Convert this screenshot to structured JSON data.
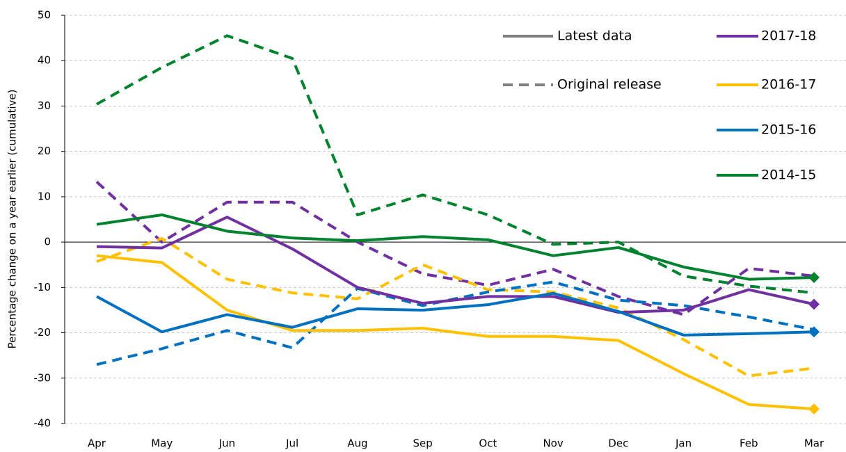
{
  "chart_data": {
    "type": "line",
    "y_label": "Percentage change on a year earlier (cumulative)",
    "categories": [
      "Apr",
      "May",
      "Jun",
      "Jul",
      "Aug",
      "Sep",
      "Oct",
      "Nov",
      "Dec",
      "Jan",
      "Feb",
      "Mar"
    ],
    "ylim": [
      -40,
      50
    ],
    "yticks": [
      -40,
      -30,
      -20,
      -10,
      0,
      10,
      20,
      30,
      40,
      50
    ],
    "grid": true,
    "line_styles": {
      "latest": "Latest data",
      "original": "Original release",
      "color": "#7f7f7f"
    },
    "series": [
      {
        "name": "2017-18",
        "color": "#7030a0",
        "values": [
          -1,
          -1.3,
          5.5,
          -1.5,
          -10,
          -13.5,
          -12,
          -12,
          -15.5,
          -15,
          -10.5,
          -13.7
        ],
        "original_values": [
          13.3,
          0,
          8.8,
          8.8,
          0,
          -7,
          -9.5,
          -6,
          -12,
          -16,
          -5.8,
          -7.5
        ]
      },
      {
        "name": "2016-17",
        "color": "#ffc000",
        "values": [
          -3,
          -4.5,
          -15,
          -19.5,
          -19.5,
          -19,
          -20.8,
          -20.8,
          -21.7,
          -29,
          -35.8,
          -36.8
        ],
        "original_values": [
          -4.3,
          0.8,
          -8.2,
          -11.2,
          -12.5,
          -5,
          -10.5,
          -11,
          -14.5,
          -21.5,
          -29.5,
          -27.8
        ]
      },
      {
        "name": "2015-16",
        "color": "#0070c0",
        "values": [
          -12,
          -19.8,
          -16,
          -18.8,
          -14.7,
          -15,
          -13.8,
          -11.3,
          -15.3,
          -20.5,
          -20.2,
          -19.8
        ],
        "original_values": [
          -27,
          -23.5,
          -19.5,
          -23.3,
          -10.2,
          -14,
          -11,
          -8.8,
          -12.8,
          -14,
          -16.5,
          -19.3
        ]
      },
      {
        "name": "2014-15",
        "color": "#00822e",
        "values": [
          3.9,
          6,
          2.4,
          0.9,
          0.3,
          1.2,
          0.5,
          -3,
          -1.2,
          -5.5,
          -8.2,
          -7.8
        ],
        "original_values": [
          30.4,
          38.5,
          45.5,
          40.5,
          6,
          10.4,
          6,
          -0.5,
          0,
          -7.5,
          -9.7,
          -11.2
        ]
      }
    ]
  }
}
